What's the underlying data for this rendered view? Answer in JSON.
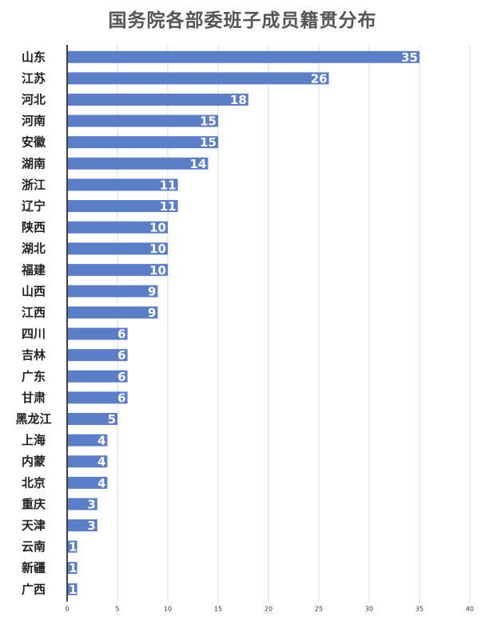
{
  "chart_data": {
    "type": "bar",
    "orientation": "horizontal",
    "title": "国务院各部委班子成员籍贯分布",
    "categories": [
      "山东",
      "江苏",
      "河北",
      "河南",
      "安徽",
      "湖南",
      "浙江",
      "辽宁",
      "陕西",
      "湖北",
      "福建",
      "山西",
      "江西",
      "四川",
      "吉林",
      "广东",
      "甘肃",
      "黑龙江",
      "上海",
      "内蒙",
      "北京",
      "重庆",
      "天津",
      "云南",
      "新疆",
      "广西"
    ],
    "values": [
      35,
      26,
      18,
      15,
      15,
      14,
      11,
      11,
      10,
      10,
      10,
      9,
      9,
      6,
      6,
      6,
      6,
      5,
      4,
      4,
      4,
      3,
      3,
      1,
      1,
      1
    ],
    "xlim": [
      0,
      40
    ],
    "xticks": [
      0,
      5,
      10,
      15,
      20,
      25,
      30,
      35,
      40
    ],
    "grid": true,
    "colors": {
      "bar": "#5b7ec9"
    }
  }
}
